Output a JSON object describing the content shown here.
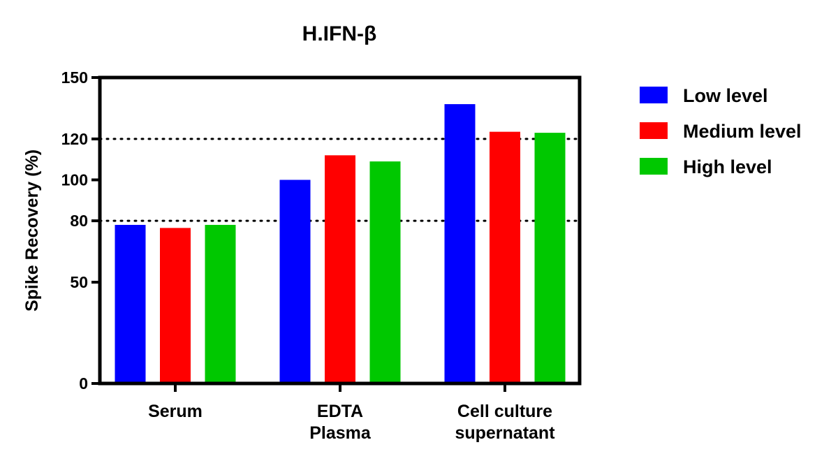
{
  "chart_data": {
    "type": "bar",
    "title": "H.IFN-β",
    "ylabel": "Spike Recovery (%)",
    "xlabel": "",
    "categories": [
      [
        "Serum"
      ],
      [
        "EDTA",
        "Plasma"
      ],
      [
        "Cell culture",
        "supernatant"
      ]
    ],
    "series": [
      {
        "name": "Low level",
        "color": "#0000ff",
        "values": [
          78,
          100,
          137
        ]
      },
      {
        "name": "Medium level",
        "color": "#ff0000",
        "values": [
          76.5,
          112,
          123.5
        ]
      },
      {
        "name": "High level",
        "color": "#00c800",
        "values": [
          78,
          109,
          123
        ]
      }
    ],
    "ylim": [
      0,
      150
    ],
    "y_scale": "piecewise (0–50 compressed, 50–150 linear)",
    "yticks": [
      0,
      50,
      80,
      100,
      120,
      150
    ],
    "reference_lines": [
      80,
      120
    ],
    "reference_line_style": "dotted",
    "grid": false,
    "legend_position": "right"
  }
}
